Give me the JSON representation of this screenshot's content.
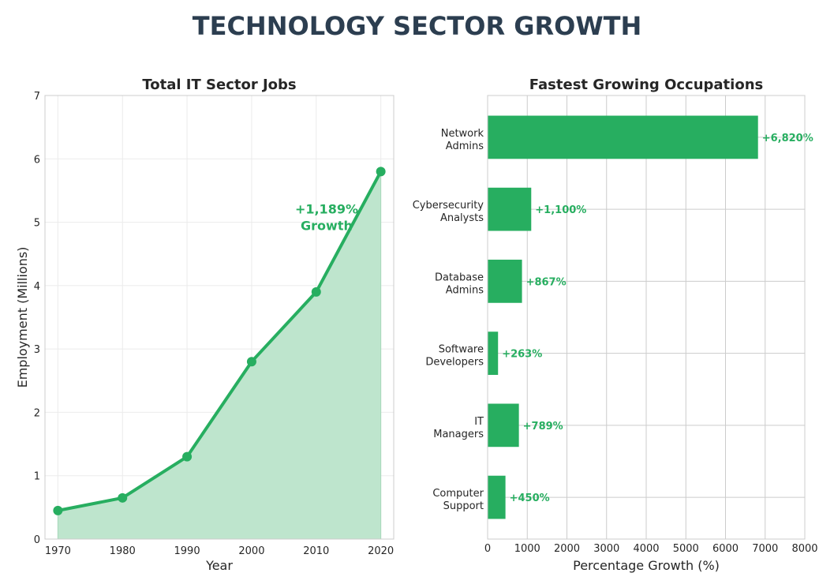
{
  "title": "TECHNOLOGY SECTOR GROWTH",
  "colors": {
    "accent": "#27ae60",
    "fill": "#bee5cd",
    "title": "#2c3e50",
    "grid": "#cccccc"
  },
  "chart_data": [
    {
      "type": "line",
      "title": "Total IT Sector Jobs",
      "xlabel": "Year",
      "ylabel": "Employment (Millions)",
      "x": [
        1970,
        1980,
        1990,
        2000,
        2010,
        2020
      ],
      "values": [
        0.45,
        0.65,
        1.3,
        2.8,
        3.9,
        5.8
      ],
      "xticks": [
        "1970",
        "1980",
        "1990",
        "2000",
        "2010",
        "2020"
      ],
      "yticks": [
        "0",
        "1",
        "2",
        "3",
        "4",
        "5",
        "6",
        "7"
      ],
      "xlim": [
        1968,
        2022
      ],
      "ylim": [
        0,
        7
      ],
      "area_fill": true,
      "grid": true,
      "annotation": {
        "lines": [
          "+1,189%",
          "Growth"
        ],
        "x": 2011,
        "y": 5.2
      }
    },
    {
      "type": "bar",
      "orientation": "horizontal",
      "title": "Fastest Growing Occupations",
      "xlabel": "Percentage Growth (%)",
      "ylabel": "",
      "categories": [
        [
          "Network",
          "Admins"
        ],
        [
          "Cybersecurity",
          "Analysts"
        ],
        [
          "Database",
          "Admins"
        ],
        [
          "Software",
          "Developers"
        ],
        [
          "IT",
          "Managers"
        ],
        [
          "Computer",
          "Support"
        ]
      ],
      "values": [
        6820,
        1100,
        867,
        263,
        789,
        450
      ],
      "data_labels": [
        "+6,820%",
        "+1,100%",
        "+867%",
        "+263%",
        "+789%",
        "+450%"
      ],
      "xticks": [
        "0",
        "1000",
        "2000",
        "3000",
        "4000",
        "5000",
        "6000",
        "7000",
        "8000"
      ],
      "xlim": [
        0,
        8000
      ],
      "grid": true
    }
  ]
}
